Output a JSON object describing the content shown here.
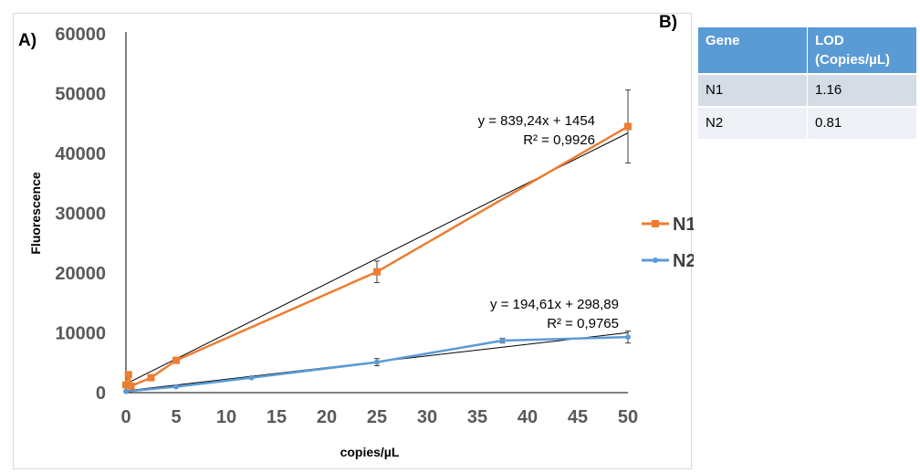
{
  "panel_a_label": "A)",
  "panel_b_label": "B)",
  "chart_data": {
    "type": "line",
    "xlabel": "copies/µL",
    "ylabel": "Fluorescence",
    "xlim": [
      0,
      50
    ],
    "ylim": [
      0,
      60000
    ],
    "xticks": [
      0,
      5,
      10,
      15,
      20,
      25,
      30,
      35,
      40,
      45,
      50
    ],
    "yticks": [
      0,
      10000,
      20000,
      30000,
      40000,
      50000,
      60000
    ],
    "grid": false,
    "legend_position": "right",
    "series": [
      {
        "name": "N1",
        "color": "#ed7d31",
        "marker": "square",
        "x": [
          0.0,
          0.25,
          0.5,
          2.5,
          5,
          25,
          50
        ],
        "y": [
          1300,
          3000,
          1100,
          2500,
          5400,
          20200,
          44500
        ],
        "error": [
          null,
          null,
          null,
          null,
          500,
          1800,
          6100
        ],
        "trendline": {
          "slope": 839.24,
          "intercept": 1454,
          "equation": "y = 839,24x + 1454",
          "r2": "R² = 0,9926"
        }
      },
      {
        "name": "N2",
        "color": "#5b9bd5",
        "marker": "circle",
        "x": [
          0,
          5,
          12.5,
          25,
          37.5,
          50
        ],
        "y": [
          200,
          1000,
          2500,
          5100,
          8700,
          9300
        ],
        "error": [
          null,
          null,
          null,
          600,
          400,
          1000
        ],
        "trendline": {
          "slope": 194.61,
          "intercept": 298.89,
          "equation": "y = 194,61x + 298,89",
          "r2": "R² = 0,9765"
        }
      }
    ]
  },
  "lod_table": {
    "headers": [
      "Gene",
      "LOD\n(Copies/µL)"
    ],
    "header_gene": "Gene",
    "header_lod_line1": "LOD",
    "header_lod_line2": "(Copies/µL)",
    "rows": [
      {
        "gene": "N1",
        "lod": "1.16"
      },
      {
        "gene": "N2",
        "lod": "0.81"
      }
    ]
  }
}
